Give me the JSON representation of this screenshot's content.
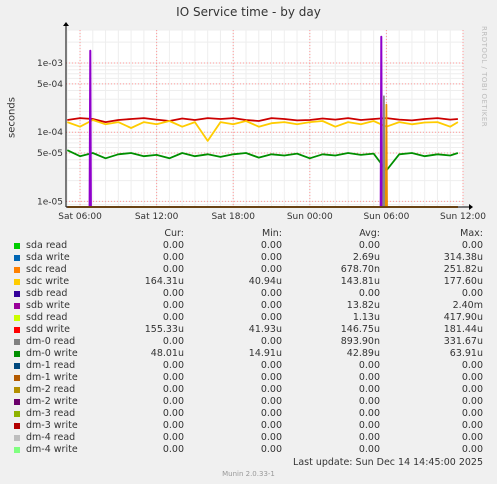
{
  "title": "IO Service time - by day",
  "watermark": "RRDTOOL / TOBI OETIKER",
  "chart_data": {
    "type": "line",
    "title": "IO Service time - by day",
    "ylabel": "seconds",
    "yscale": "log",
    "ylim": [
      8.3e-06,
      0.003
    ],
    "y_ticks": [
      {
        "value": 0.001,
        "label": "1e-03"
      },
      {
        "value": 0.0005,
        "label": "5e-04"
      },
      {
        "value": 0.0001,
        "label": "1e-04"
      },
      {
        "value": 5e-05,
        "label": "5e-05"
      },
      {
        "value": 1e-05,
        "label": "1e-05"
      }
    ],
    "x_ticks": [
      "Sat 06:00",
      "Sat 12:00",
      "Sat 18:00",
      "Sun 00:00",
      "Sun 06:00",
      "Sun 12:00"
    ],
    "x_range_hours": [
      -1.1,
      30.0
    ],
    "grid": true,
    "series": [
      {
        "name": "sdd write",
        "color": "#CC0000",
        "x": [
          -1,
          0,
          1,
          2,
          3,
          4,
          5,
          6,
          7,
          8,
          9,
          10,
          11,
          12,
          13,
          14,
          15,
          16,
          17,
          18,
          19,
          20,
          21,
          22,
          23,
          24,
          25,
          26,
          27,
          28,
          29,
          29.6
        ],
        "y": [
          0.00015,
          0.00016,
          0.000155,
          0.00014,
          0.00015,
          0.000155,
          0.00016,
          0.000152,
          0.000145,
          0.000158,
          0.00015,
          0.00016,
          0.000155,
          0.00016,
          0.00015,
          0.000145,
          0.00016,
          0.000155,
          0.000148,
          0.00015,
          0.000158,
          0.000152,
          0.00016,
          0.00015,
          0.000155,
          0.00016,
          0.000152,
          0.000148,
          0.000155,
          0.00016,
          0.000152,
          0.000155
        ]
      },
      {
        "name": "sdc write",
        "color": "#FFCC00",
        "x": [
          -1,
          0,
          1,
          2,
          3,
          4,
          5,
          6,
          7,
          8,
          9,
          10,
          11,
          12,
          13,
          14,
          15,
          16,
          17,
          18,
          19,
          20,
          21,
          22,
          23,
          24,
          25,
          26,
          27,
          28,
          29,
          29.6
        ],
        "y": [
          0.00014,
          0.00012,
          0.00015,
          0.00013,
          0.00014,
          0.000115,
          0.00014,
          0.00013,
          0.000145,
          0.00012,
          0.00014,
          7.5e-05,
          0.00014,
          0.00013,
          0.000145,
          0.00012,
          0.000135,
          0.00014,
          0.00013,
          0.00014,
          0.000145,
          0.00012,
          0.00014,
          0.00013,
          0.000145,
          0.00012,
          0.00014,
          0.00013,
          0.000138,
          0.00014,
          0.00012,
          0.00014
        ]
      },
      {
        "name": "dm-0 write",
        "color": "#008F00",
        "x": [
          -1,
          0,
          1,
          2,
          3,
          4,
          5,
          6,
          7,
          8,
          9,
          10,
          11,
          12,
          13,
          14,
          15,
          16,
          17,
          18,
          19,
          20,
          21,
          22,
          23,
          24,
          25,
          26,
          27,
          28,
          29,
          29.6
        ],
        "y": [
          5.5e-05,
          4.5e-05,
          5e-05,
          4.2e-05,
          4.8e-05,
          5e-05,
          4.5e-05,
          4.7e-05,
          4.2e-05,
          5e-05,
          4.5e-05,
          4.8e-05,
          4.4e-05,
          4.8e-05,
          5e-05,
          4.3e-05,
          4.8e-05,
          4.6e-05,
          4.9e-05,
          4.2e-05,
          4.8e-05,
          4.6e-05,
          5e-05,
          4.7e-05,
          4.9e-05,
          2.8e-05,
          4.8e-05,
          5e-05,
          4.5e-05,
          4.8e-05,
          4.6e-05,
          5e-05
        ]
      },
      {
        "name": "sdb write",
        "color": "#8F00CC",
        "x": [
          -1,
          0.75,
          0.8,
          0.85,
          1.0,
          23.55,
          23.6,
          23.65,
          23.9,
          29.6
        ],
        "y": [
          8.3e-06,
          8.3e-06,
          0.0015,
          8.3e-06,
          8.3e-06,
          8.3e-06,
          0.0024,
          8.3e-06,
          8.3e-06,
          8.3e-06
        ]
      },
      {
        "name": "dm-0 read",
        "color": "#888888",
        "x": [
          -1,
          23.75,
          23.8,
          23.85,
          29.6
        ],
        "y": [
          8.3e-06,
          8.3e-06,
          0.00033,
          8.3e-06,
          8.3e-06
        ]
      },
      {
        "name": "sdc read",
        "color": "#EA8F00",
        "x": [
          -1,
          23.95,
          24.0,
          24.05,
          29.6
        ],
        "y": [
          8.3e-06,
          8.3e-06,
          0.00025,
          8.3e-06,
          8.3e-06
        ]
      }
    ]
  },
  "legend": {
    "headers": {
      "cur": "Cur:",
      "min": "Min:",
      "avg": "Avg:",
      "max": "Max:"
    },
    "rows": [
      {
        "name": "sda read",
        "color": "#00CC00",
        "cur": "0.00",
        "min": "0.00",
        "avg": "0.00",
        "max": "0.00"
      },
      {
        "name": "sda write",
        "color": "#0066B3",
        "cur": "0.00",
        "min": "0.00",
        "avg": "2.69u",
        "max": "314.38u"
      },
      {
        "name": "sdc read",
        "color": "#FF8000",
        "cur": "0.00",
        "min": "0.00",
        "avg": "678.70n",
        "max": "251.82u"
      },
      {
        "name": "sdc write",
        "color": "#FFCC00",
        "cur": "164.31u",
        "min": "40.94u",
        "avg": "143.81u",
        "max": "177.60u"
      },
      {
        "name": "sdb read",
        "color": "#330099",
        "cur": "0.00",
        "min": "0.00",
        "avg": "0.00",
        "max": "0.00"
      },
      {
        "name": "sdb write",
        "color": "#990099",
        "cur": "0.00",
        "min": "0.00",
        "avg": "13.82u",
        "max": "2.40m"
      },
      {
        "name": "sdd read",
        "color": "#CCFF00",
        "cur": "0.00",
        "min": "0.00",
        "avg": "1.13u",
        "max": "417.90u"
      },
      {
        "name": "sdd write",
        "color": "#FF0000",
        "cur": "155.33u",
        "min": "41.93u",
        "avg": "146.75u",
        "max": "181.44u"
      },
      {
        "name": "dm-0 read",
        "color": "#808080",
        "cur": "0.00",
        "min": "0.00",
        "avg": "893.90n",
        "max": "331.67u"
      },
      {
        "name": "dm-0 write",
        "color": "#008F00",
        "cur": "48.01u",
        "min": "14.91u",
        "avg": "42.89u",
        "max": "63.91u"
      },
      {
        "name": "dm-1 read",
        "color": "#00487D",
        "cur": "0.00",
        "min": "0.00",
        "avg": "0.00",
        "max": "0.00"
      },
      {
        "name": "dm-1 write",
        "color": "#B35A00",
        "cur": "0.00",
        "min": "0.00",
        "avg": "0.00",
        "max": "0.00"
      },
      {
        "name": "dm-2 read",
        "color": "#B38F00",
        "cur": "0.00",
        "min": "0.00",
        "avg": "0.00",
        "max": "0.00"
      },
      {
        "name": "dm-2 write",
        "color": "#6B006B",
        "cur": "0.00",
        "min": "0.00",
        "avg": "0.00",
        "max": "0.00"
      },
      {
        "name": "dm-3 read",
        "color": "#8FB300",
        "cur": "0.00",
        "min": "0.00",
        "avg": "0.00",
        "max": "0.00"
      },
      {
        "name": "dm-3 write",
        "color": "#B30000",
        "cur": "0.00",
        "min": "0.00",
        "avg": "0.00",
        "max": "0.00"
      },
      {
        "name": "dm-4 read",
        "color": "#BEBEBE",
        "cur": "0.00",
        "min": "0.00",
        "avg": "0.00",
        "max": "0.00"
      },
      {
        "name": "dm-4 write",
        "color": "#80FF80",
        "cur": "0.00",
        "min": "0.00",
        "avg": "0.00",
        "max": "0.00"
      }
    ]
  },
  "last_update": "Last update:  Sun Dec 14 14:45:00 2025",
  "munin_version": "Munin 2.0.33-1"
}
